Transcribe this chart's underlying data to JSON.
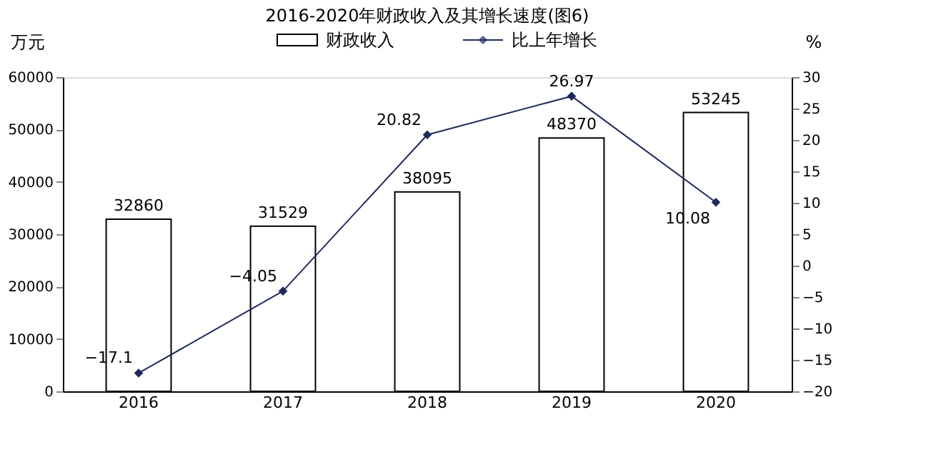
{
  "chart_data": {
    "type": "bar",
    "title": "2016-2020年财政收入及其增长速度(图6)",
    "categories": [
      "2016",
      "2017",
      "2018",
      "2019",
      "2020"
    ],
    "series": [
      {
        "name": "财政收入",
        "color": "#ffffff",
        "values": [
          32860,
          31529,
          38095,
          48370,
          53245
        ]
      },
      {
        "name": "比上年增长",
        "type": "line",
        "axis": "y2",
        "color": "#1f2a5c",
        "values": [
          -17.1,
          -4.05,
          20.82,
          26.97,
          10.08
        ]
      }
    ],
    "ylabel": "万元",
    "y2label": "%",
    "ylim": [
      0,
      60000
    ],
    "yticks": [
      0,
      10000,
      20000,
      30000,
      40000,
      50000,
      60000
    ],
    "y2lim": [
      -20,
      30
    ],
    "y2ticks": [
      -20,
      -15,
      -10,
      -5,
      0,
      5,
      10,
      15,
      20,
      25,
      30
    ],
    "data_labels": true,
    "legend": "top",
    "grid": false,
    "marker": "diamond",
    "line_style": "solid"
  }
}
